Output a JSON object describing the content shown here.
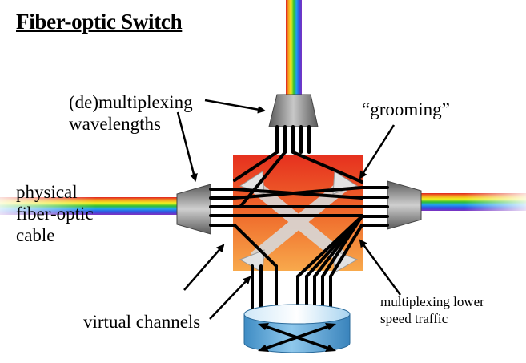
{
  "title": "Fiber-optic Switch",
  "labels": {
    "demux_line1": "(de)multiplexing",
    "demux_line2": "wavelengths",
    "physical_line1": "physical",
    "physical_line2": "fiber-optic",
    "physical_line3": "cable",
    "grooming": "“grooming”",
    "virtual_channels": "virtual channels",
    "mux_line1": "multiplexing lower",
    "mux_line2": "speed traffic"
  },
  "colors": {
    "switch_top": "#e8321f",
    "switch_bottom": "#f7a04a",
    "mux_gray": "#8a8a8a",
    "fiber": "#000000",
    "router_blue": "#6fb0dc",
    "spectrum": [
      "#e02020",
      "#f5a020",
      "#f0f020",
      "#30c030",
      "#20a0f0",
      "#3050e0",
      "#8030c0"
    ]
  },
  "icons": [
    "prism-demux-icon",
    "crossbar-switch-icon",
    "router-icon",
    "rainbow-fiber-icon"
  ]
}
